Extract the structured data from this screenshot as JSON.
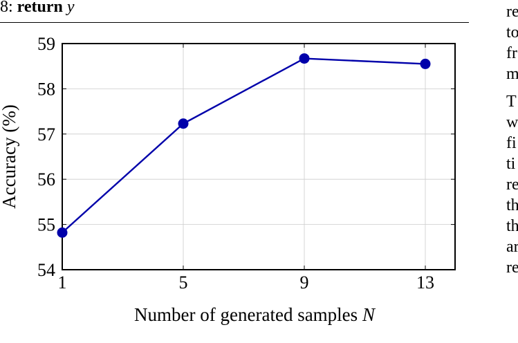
{
  "algorithm_line": {
    "number": "8:",
    "keyword": "return",
    "variable": "y"
  },
  "right_column_fragments": [
    "re",
    "to",
    "fr",
    "m",
    "T",
    "w",
    "fi",
    "ti",
    "re",
    "th",
    "th",
    "ar",
    "re"
  ],
  "chart_data": {
    "type": "line",
    "xlabel": "Number of generated samples N",
    "ylabel": "Accuracy (%)",
    "x": [
      1,
      5,
      9,
      13
    ],
    "x_ticks": [
      "1",
      "5",
      "9",
      "13"
    ],
    "y_ticks": [
      "54",
      "55",
      "56",
      "57",
      "58",
      "59"
    ],
    "ylim": [
      54,
      59
    ],
    "grid": true,
    "series": [
      {
        "values": [
          54.82,
          57.23,
          58.67,
          58.55
        ],
        "color": "#0000aa",
        "marker": "circle"
      }
    ]
  }
}
